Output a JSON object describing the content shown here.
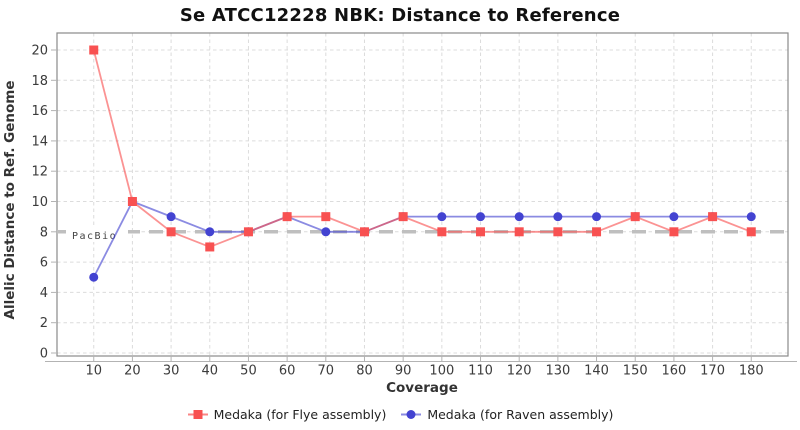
{
  "chart_data": {
    "type": "line",
    "title": "Se ATCC12228 NBK: Distance to Reference",
    "xlabel": "Coverage",
    "ylabel": "Allelic Distance to Ref. Genome",
    "x": [
      10,
      20,
      30,
      40,
      50,
      60,
      70,
      80,
      90,
      100,
      110,
      120,
      130,
      140,
      150,
      160,
      170,
      180
    ],
    "xlim": [
      0.5,
      189.5
    ],
    "ylim": [
      0,
      20
    ],
    "ytick_step": 2,
    "grid": true,
    "legend_position": "bottom-center",
    "line_opacity": 0.62,
    "series": [
      {
        "name": "Medaka (for Flye assembly)",
        "marker": "square",
        "color": "#f85151",
        "values": [
          20,
          10,
          8,
          7,
          8,
          9,
          9,
          8,
          9,
          8,
          8,
          8,
          8,
          8,
          9,
          8,
          9,
          8
        ]
      },
      {
        "name": "Medaka (for Raven assembly)",
        "marker": "circle",
        "color": "#4343d1",
        "values": [
          5,
          10,
          9,
          8,
          8,
          9,
          8,
          8,
          9,
          9,
          9,
          9,
          9,
          9,
          9,
          9,
          9,
          9
        ]
      }
    ],
    "reference_line": {
      "label": "PacBio",
      "y": 8,
      "color": "#bfbfbf",
      "style": "dashed"
    }
  },
  "colors": {
    "grid": "#dcdcdc",
    "frame": "#8a8a8a",
    "axis": "#b3b3b3",
    "tick_label": "#3b3b3b"
  }
}
